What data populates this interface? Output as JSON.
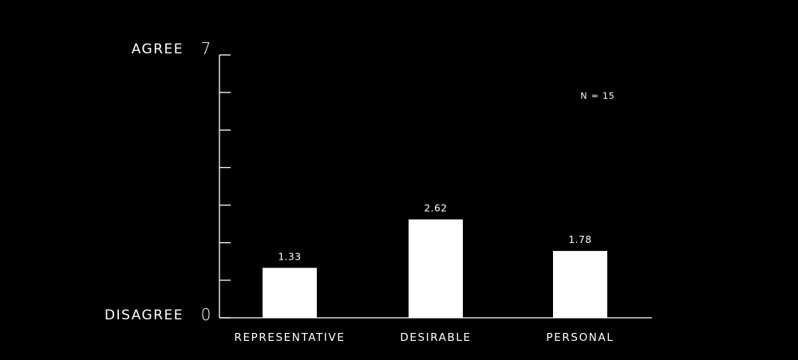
{
  "chart_data": {
    "type": "bar",
    "categories": [
      "REPRESENTATIVE",
      "DESIRABLE",
      "PERSONAL"
    ],
    "values": [
      1.33,
      2.62,
      1.78
    ],
    "value_labels": [
      "1.33",
      "2.62",
      "1.78"
    ],
    "ylim": [
      0,
      7
    ],
    "y_ticks": [
      0,
      1,
      2,
      3,
      4,
      5,
      6,
      7
    ],
    "y_top": {
      "label": "AGREE",
      "value": "7"
    },
    "y_bottom": {
      "label": "DISAGREE",
      "value": "0"
    },
    "annotation": "N = 15",
    "grid": false,
    "colors": {
      "background": "#000000",
      "bar": "#ffffff",
      "axis": "#ffffff",
      "text": "#ffffff"
    }
  }
}
